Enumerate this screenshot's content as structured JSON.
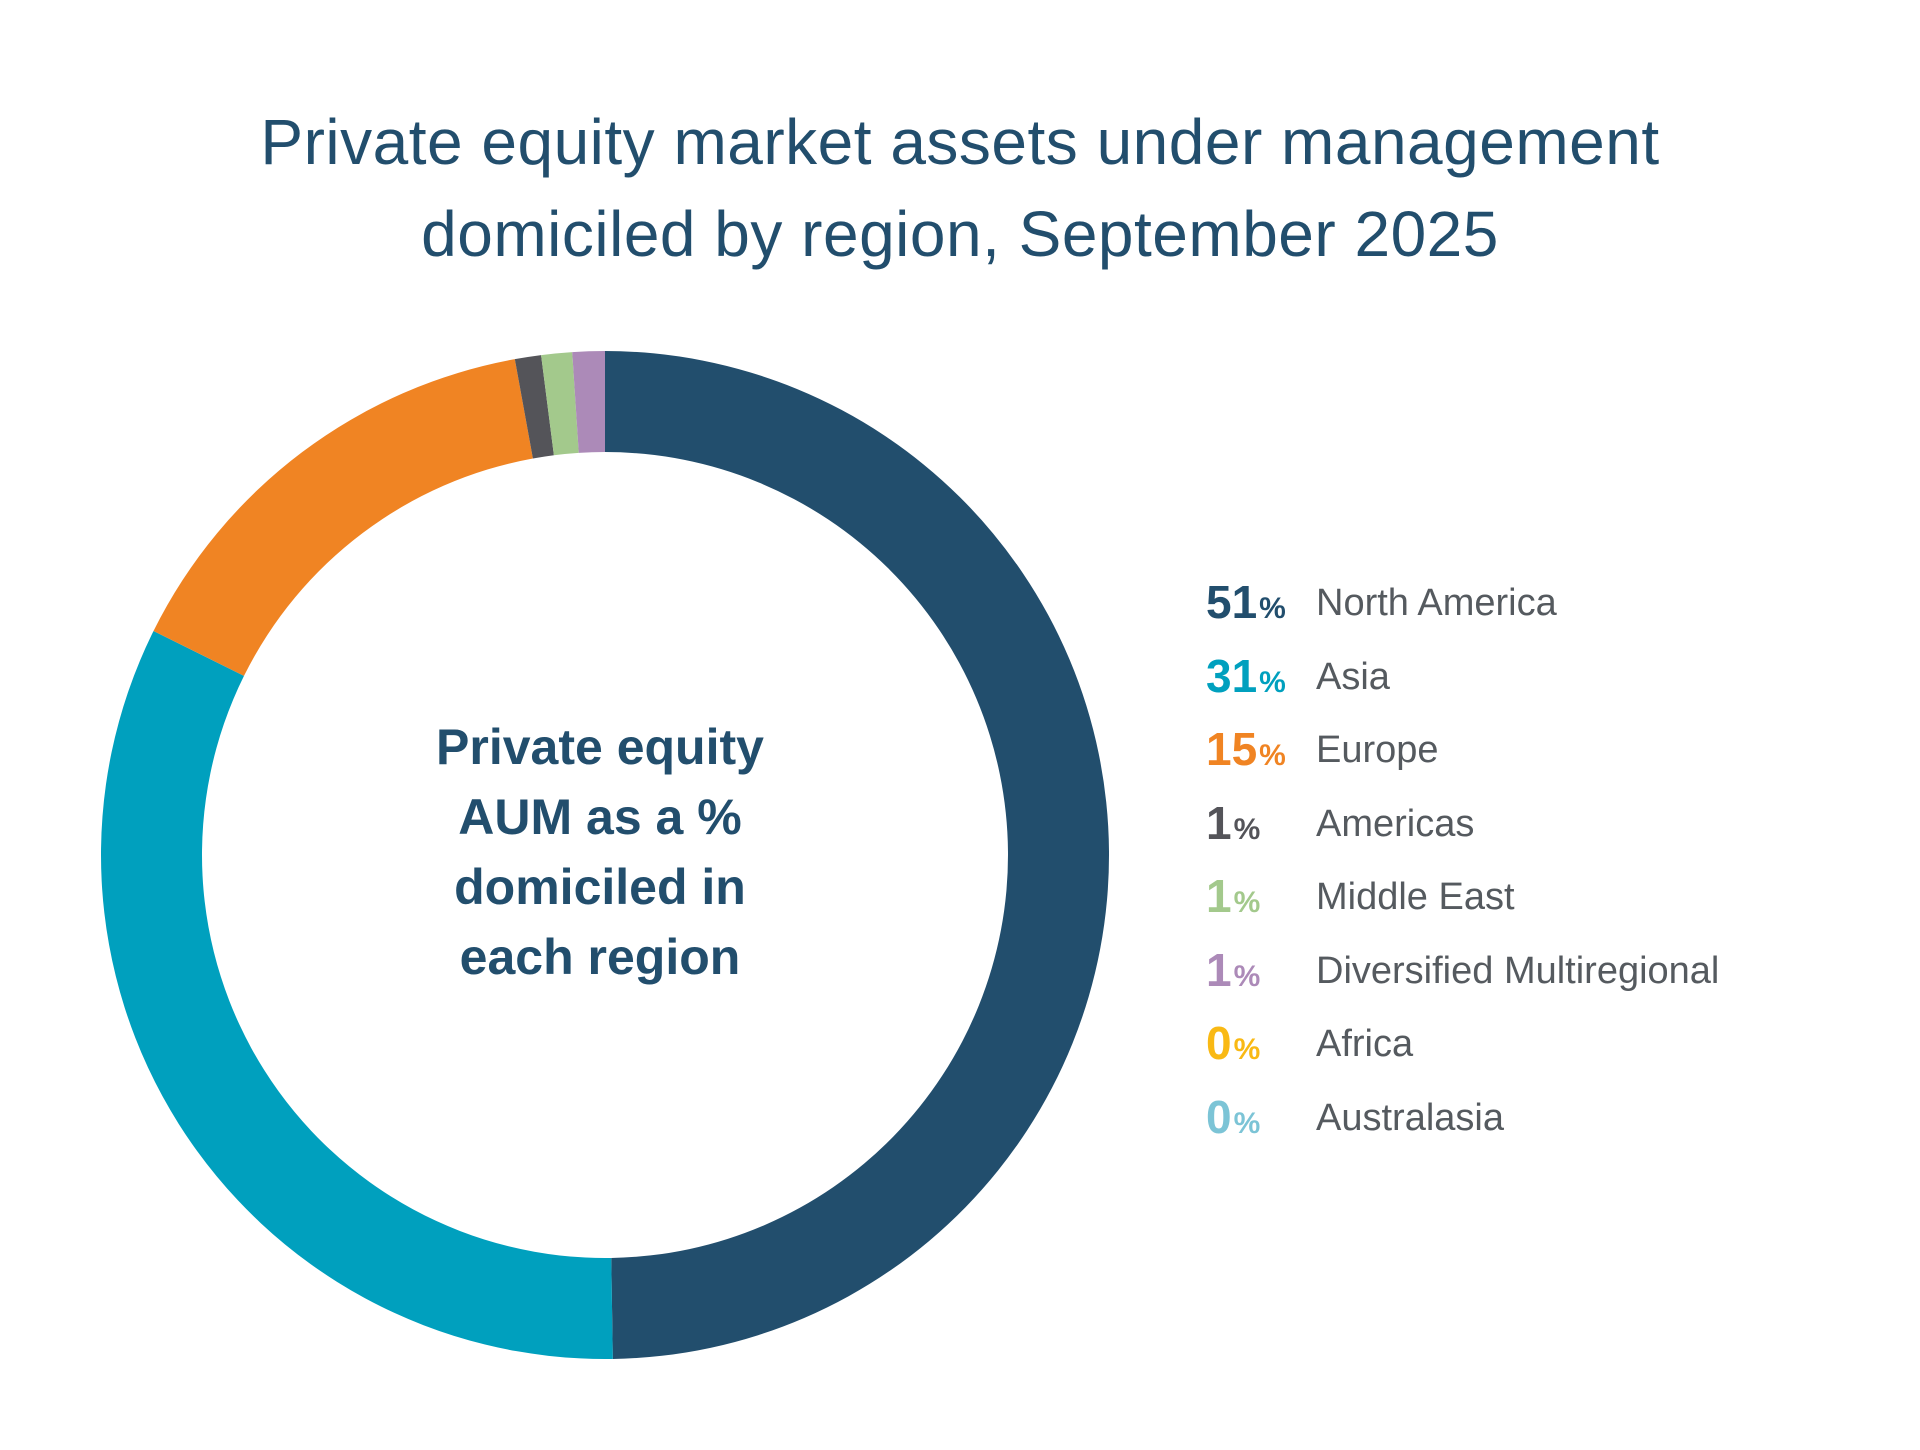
{
  "title_lines": [
    "Private equity market assets under management",
    "domiciled by region, September 2025"
  ],
  "center_label_lines": [
    "Private equity",
    "AUM as a %",
    "domiciled in",
    "each region"
  ],
  "legend": [
    {
      "value": "51",
      "unit": "%",
      "label": "North America",
      "color": "#224e6d"
    },
    {
      "value": "31",
      "unit": "%",
      "label": "Asia",
      "color": "#00a0be"
    },
    {
      "value": "15",
      "unit": "%",
      "label": "Europe",
      "color": "#f08423"
    },
    {
      "value": "1",
      "unit": "%",
      "label": "Americas",
      "color": "#545459"
    },
    {
      "value": "1",
      "unit": "%",
      "label": "Middle East",
      "color": "#a3c98c"
    },
    {
      "value": "1",
      "unit": "%",
      "label": "Diversified Multiregional",
      "color": "#ac8ab8"
    },
    {
      "value": "0",
      "unit": "%",
      "label": "Africa",
      "color": "#f9b914"
    },
    {
      "value": "0",
      "unit": "%",
      "label": "Australasia",
      "color": "#7cc4d6"
    }
  ],
  "chart_data": {
    "type": "pie",
    "donut": true,
    "title": "Private equity market assets under management domiciled by region, September 2025",
    "categories": [
      "North America",
      "Asia",
      "Europe",
      "Americas",
      "Middle East",
      "Diversified Multiregional",
      "Africa",
      "Australasia"
    ],
    "values": [
      51,
      31,
      15,
      1,
      1,
      1,
      0,
      0
    ],
    "unit": "%",
    "colors": [
      "#224e6d",
      "#00a0be",
      "#f08423",
      "#545459",
      "#a3c98c",
      "#ac8ab8",
      "#f9b914",
      "#7cc4d6"
    ],
    "legend_position": "right"
  }
}
